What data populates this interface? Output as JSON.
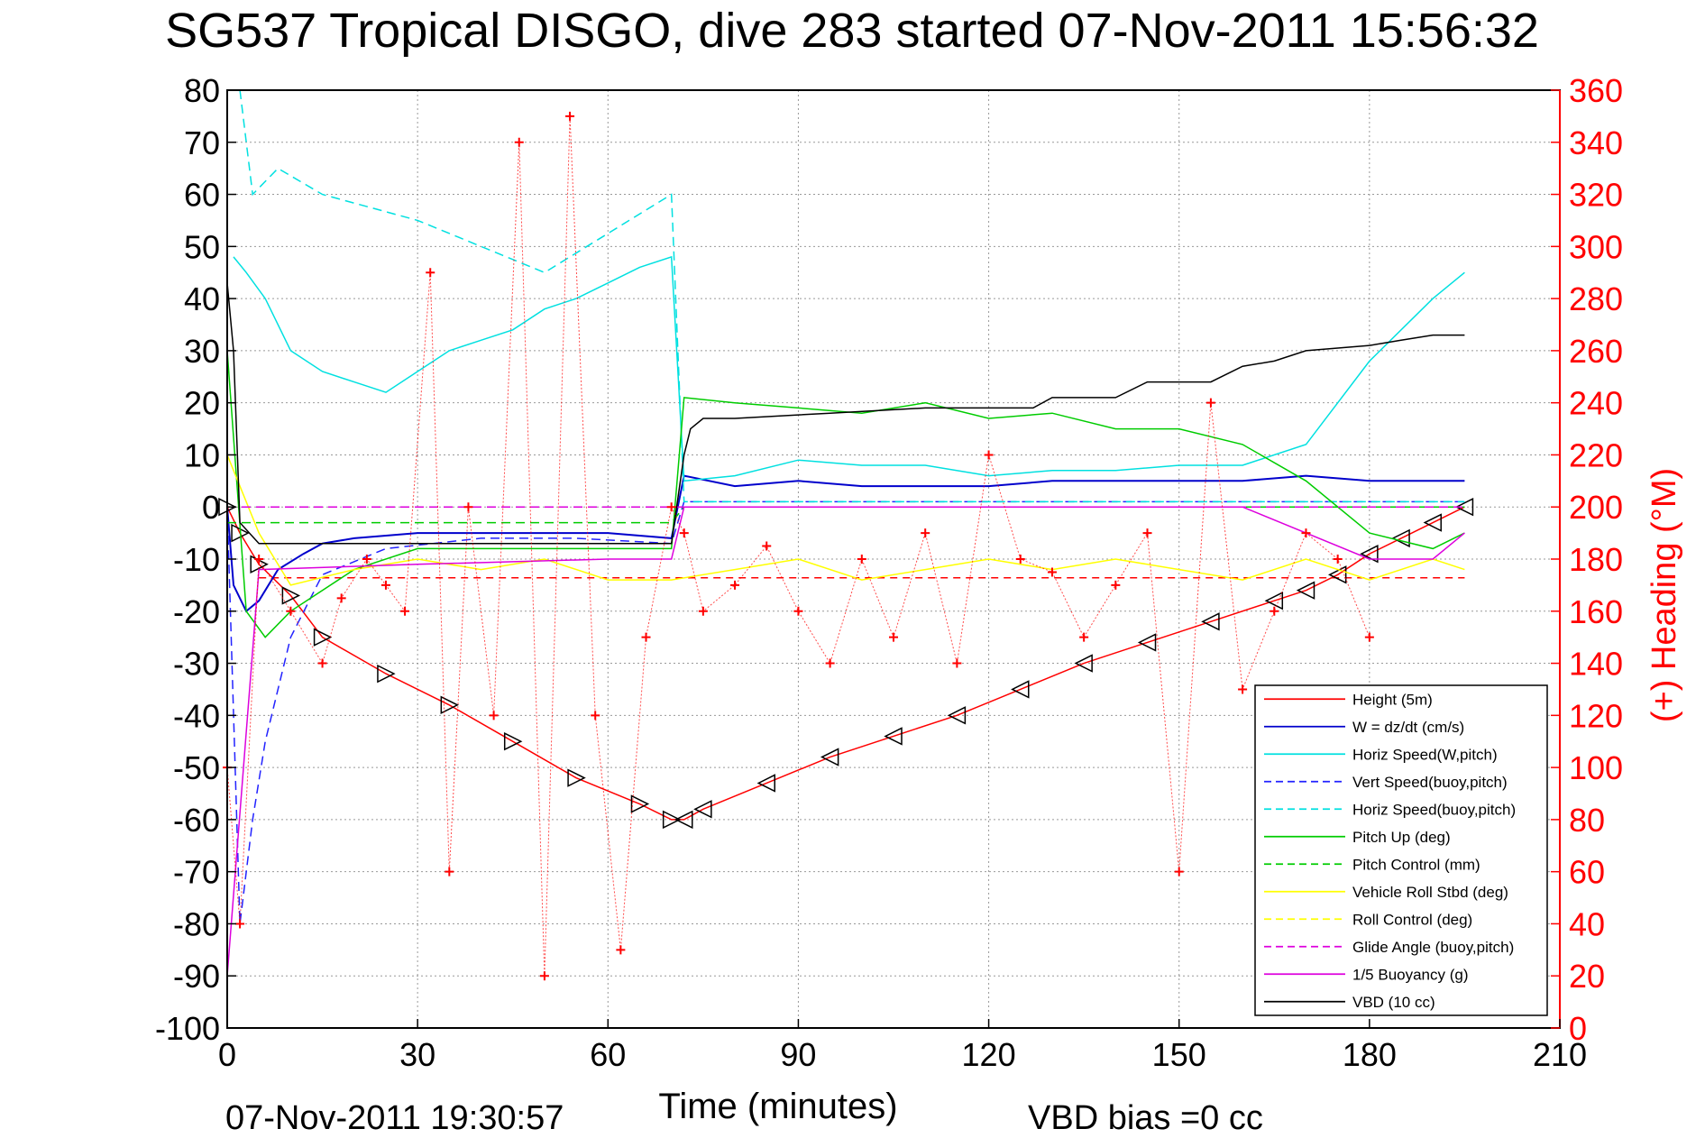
{
  "chart_data": {
    "type": "line",
    "title": "SG537 Tropical DISGO, dive 283 started 07-Nov-2011 15:56:32",
    "xlabel": "Time (minutes)",
    "ylabel": "",
    "ylabel_right": "(+) Heading (°M)",
    "footer_left": "07-Nov-2011 19:30:57",
    "footer_right": "VBD bias =0 cc",
    "xlim": [
      0,
      210
    ],
    "ylim": [
      -100,
      80
    ],
    "ylim_right": [
      0,
      360
    ],
    "x_ticks": [
      0,
      30,
      60,
      90,
      120,
      150,
      180,
      210
    ],
    "y_ticks": [
      -100,
      -90,
      -80,
      -70,
      -60,
      -50,
      -40,
      -30,
      -20,
      -10,
      0,
      10,
      20,
      30,
      40,
      50,
      60,
      70,
      80
    ],
    "y_ticks_right": [
      0,
      20,
      40,
      60,
      80,
      100,
      120,
      140,
      160,
      180,
      200,
      220,
      240,
      260,
      280,
      300,
      320,
      340,
      360
    ],
    "grid": true,
    "legend_position": "bottom-right",
    "legend": [
      {
        "label": "Height (5m)",
        "color": "#ff0000",
        "dash": false
      },
      {
        "label": "W = dz/dt (cm/s)",
        "color": "#0000cc",
        "dash": false
      },
      {
        "label": "Horiz Speed(W,pitch)",
        "color": "#00e0e0",
        "dash": false
      },
      {
        "label": "Vert Speed(buoy,pitch)",
        "color": "#2222ff",
        "dash": true
      },
      {
        "label": "Horiz Speed(buoy,pitch)",
        "color": "#00e0e0",
        "dash": true
      },
      {
        "label": "Pitch Up (deg)",
        "color": "#00cc00",
        "dash": false
      },
      {
        "label": "Pitch Control (mm)",
        "color": "#00cc00",
        "dash": true
      },
      {
        "label": "Vehicle Roll Stbd (deg)",
        "color": "#ffff00",
        "dash": false
      },
      {
        "label": "Roll Control (deg)",
        "color": "#ffff00",
        "dash": true
      },
      {
        "label": "Glide Angle (buoy,pitch)",
        "color": "#dd00dd",
        "dash": true
      },
      {
        "label": "1/5 Buoyancy (g)",
        "color": "#dd00dd",
        "dash": false
      },
      {
        "label": "VBD (10 cc)",
        "color": "#000000",
        "dash": false
      }
    ],
    "series": [
      {
        "name": "Height (5m)",
        "x": [
          0,
          2,
          5,
          10,
          15,
          25,
          35,
          45,
          55,
          65,
          70,
          72,
          75,
          85,
          95,
          105,
          115,
          125,
          135,
          145,
          155,
          165,
          170,
          175,
          180,
          185,
          190,
          195
        ],
        "y": [
          0,
          -5,
          -11,
          -17,
          -25,
          -32,
          -38,
          -45,
          -52,
          -57,
          -60,
          -60,
          -58,
          -53,
          -48,
          -44,
          -40,
          -35,
          -30,
          -26,
          -22,
          -18,
          -16,
          -13,
          -9,
          -6,
          -3,
          0
        ]
      },
      {
        "name": "W = dz/dt (cm/s)",
        "x": [
          0,
          1,
          3,
          5,
          8,
          12,
          15,
          20,
          30,
          40,
          50,
          60,
          70,
          72,
          80,
          90,
          100,
          110,
          120,
          130,
          140,
          150,
          160,
          170,
          180,
          190,
          195
        ],
        "y": [
          0,
          -15,
          -20,
          -18,
          -12,
          -9,
          -7,
          -6,
          -5,
          -5,
          -5,
          -5,
          -6,
          6,
          4,
          5,
          4,
          4,
          4,
          5,
          5,
          5,
          5,
          6,
          5,
          5,
          5
        ]
      },
      {
        "name": "Horiz Speed(W,pitch)",
        "x": [
          1,
          3,
          6,
          10,
          15,
          20,
          25,
          30,
          35,
          40,
          45,
          50,
          55,
          60,
          65,
          70,
          72,
          80,
          90,
          100,
          110,
          120,
          130,
          140,
          150,
          160,
          170,
          180,
          190,
          195
        ],
        "y": [
          48,
          45,
          40,
          30,
          26,
          24,
          22,
          26,
          30,
          32,
          34,
          38,
          40,
          43,
          46,
          48,
          5,
          6,
          9,
          8,
          8,
          6,
          7,
          7,
          8,
          8,
          12,
          28,
          40,
          45
        ]
      },
      {
        "name": "Vert Speed(buoy,pitch)",
        "x": [
          0,
          2,
          4,
          6,
          10,
          15,
          25,
          40,
          55,
          70,
          72,
          100,
          140,
          195
        ],
        "y": [
          0,
          -80,
          -60,
          -45,
          -25,
          -13,
          -8,
          -6,
          -6,
          -7,
          1,
          1,
          1,
          1
        ]
      },
      {
        "name": "Horiz Speed(buoy,pitch)",
        "x": [
          2,
          4,
          8,
          15,
          30,
          50,
          70,
          72,
          100,
          150,
          195
        ],
        "y": [
          80,
          60,
          65,
          60,
          55,
          45,
          60,
          1,
          1,
          1,
          1
        ]
      },
      {
        "name": "Pitch Up (deg)",
        "x": [
          0,
          3,
          6,
          10,
          20,
          30,
          45,
          60,
          70,
          72,
          80,
          90,
          100,
          110,
          120,
          130,
          140,
          150,
          160,
          170,
          180,
          190,
          195
        ],
        "y": [
          30,
          -20,
          -25,
          -20,
          -12,
          -8,
          -8,
          -8,
          -8,
          21,
          20,
          19,
          18,
          20,
          17,
          18,
          15,
          15,
          12,
          5,
          -5,
          -8,
          -5
        ]
      },
      {
        "name": "Pitch Control (mm)",
        "x": [
          0,
          5,
          70,
          72,
          195
        ],
        "y": [
          -3,
          -3,
          -3,
          0,
          0
        ]
      },
      {
        "name": "Vehicle Roll Stbd (deg)",
        "x": [
          0,
          5,
          10,
          20,
          30,
          40,
          50,
          60,
          70,
          80,
          90,
          100,
          110,
          120,
          130,
          140,
          150,
          160,
          170,
          180,
          190,
          195
        ],
        "y": [
          10,
          -5,
          -15,
          -12,
          -10,
          -12,
          -10,
          -14,
          -14,
          -12,
          -10,
          -14,
          -12,
          -10,
          -12,
          -10,
          -12,
          -14,
          -10,
          -14,
          -10,
          -12
        ]
      },
      {
        "name": "Roll Control (deg)",
        "x": [
          0,
          195
        ],
        "y": [
          0,
          0
        ]
      },
      {
        "name": "Glide Angle (buoy,pitch)",
        "x": [
          0,
          195
        ],
        "y": [
          0,
          0
        ]
      },
      {
        "name": "1/5 Buoyancy (g)",
        "x": [
          0,
          5,
          30,
          60,
          70,
          72,
          100,
          160,
          180,
          190,
          195
        ],
        "y": [
          -90,
          -12,
          -11,
          -10,
          -10,
          0,
          0,
          0,
          -10,
          -10,
          -5
        ]
      },
      {
        "name": "VBD (10 cc)",
        "x": [
          0,
          1,
          2,
          5,
          70,
          72,
          73,
          75,
          80,
          95,
          110,
          120,
          127,
          130,
          140,
          145,
          155,
          160,
          165,
          170,
          180,
          185,
          190,
          195
        ],
        "y": [
          43,
          30,
          -3,
          -7,
          -7,
          10,
          15,
          17,
          17,
          18,
          19,
          19,
          19,
          21,
          21,
          24,
          24,
          27,
          28,
          30,
          31,
          32,
          33,
          33
        ]
      },
      {
        "name": "Heading",
        "axis": "right",
        "x": [
          0,
          2,
          5,
          10,
          15,
          18,
          22,
          25,
          28,
          32,
          35,
          38,
          42,
          46,
          50,
          54,
          58,
          62,
          66,
          70,
          72,
          75,
          80,
          85,
          90,
          95,
          100,
          105,
          110,
          115,
          120,
          125,
          130,
          135,
          140,
          145,
          150,
          155,
          160,
          165,
          170,
          175,
          180
        ],
        "y": [
          100,
          40,
          180,
          160,
          140,
          165,
          180,
          170,
          160,
          290,
          60,
          200,
          120,
          340,
          20,
          350,
          120,
          30,
          150,
          200,
          190,
          160,
          170,
          185,
          160,
          140,
          180,
          150,
          190,
          140,
          220,
          180,
          175,
          150,
          170,
          190,
          60,
          240,
          130,
          160,
          190,
          180,
          150
        ]
      }
    ],
    "annotation": "Height markers: triangles along descent and ascent trajectory; dashed red reference at -13.6"
  }
}
